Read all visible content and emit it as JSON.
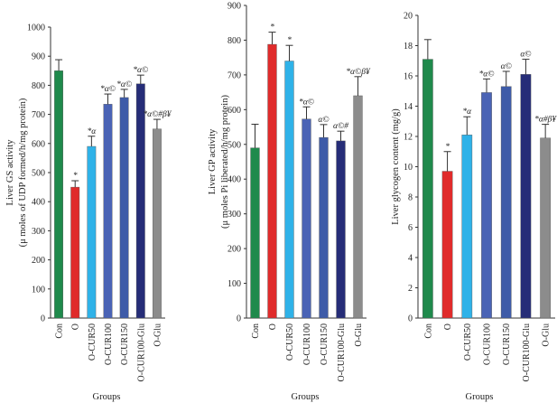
{
  "colors": [
    "#1f8a4c",
    "#e02b2b",
    "#2fb2e8",
    "#4a63b5",
    "#3e5ba8",
    "#262d78",
    "#8c8c8c"
  ],
  "chart_data": [
    {
      "type": "bar",
      "id": "gs",
      "categories": [
        "Con",
        "O",
        "O-CUR50",
        "O-CUR100",
        "O-CUR150",
        "O-CUR100-Glu",
        "O-Glu"
      ],
      "values": [
        850,
        450,
        590,
        735,
        758,
        805,
        650
      ],
      "errors": [
        38,
        22,
        35,
        35,
        28,
        30,
        33
      ],
      "annotations": [
        "",
        "*",
        "*α",
        "*α©",
        "*α©",
        "*α©",
        "*α©#β¥"
      ],
      "ylabel_lines": [
        "Liver GS activity",
        "(μ moles of UDP formed/h/mg protein)"
      ],
      "xlabel": "Groups",
      "ylim": [
        0,
        1000
      ],
      "yticks": [
        "0",
        "100",
        "200",
        "300",
        "400",
        "500",
        "600",
        "700",
        "800",
        "900",
        "1000"
      ]
    },
    {
      "type": "bar",
      "id": "gp",
      "categories": [
        "Con",
        "O",
        "O-CUR50",
        "O-CUR100",
        "O-CUR150",
        "O-CUR100-Glu",
        "O-Glu"
      ],
      "values": [
        490,
        788,
        740,
        573,
        520,
        510,
        640
      ],
      "errors": [
        68,
        35,
        45,
        35,
        37,
        28,
        55
      ],
      "annotations": [
        "",
        "*",
        "*",
        "*α©",
        "α©",
        "α©#",
        "*α©β¥"
      ],
      "ylabel_lines": [
        "Liver GP activity",
        "(μ moles Pi liberated/h/mg protein)"
      ],
      "xlabel": "Groups",
      "ylim": [
        0,
        900
      ],
      "yticks": [
        "0",
        "100",
        "200",
        "300",
        "400",
        "500",
        "600",
        "700",
        "800",
        "900"
      ]
    },
    {
      "type": "bar",
      "id": "glycogen",
      "categories": [
        "Con",
        "O",
        "O-CUR50",
        "O-CUR100",
        "O-CUR150",
        "O-CUR100-Glu",
        "O-Glu"
      ],
      "values": [
        17.1,
        9.7,
        12.1,
        14.9,
        15.3,
        16.1,
        11.9
      ],
      "errors": [
        1.3,
        1.3,
        1.2,
        0.9,
        1.0,
        1.0,
        0.9
      ],
      "annotations": [
        "",
        "*",
        "*α",
        "*α©",
        "α©",
        "α©",
        "*α#β¥"
      ],
      "ylabel_lines": [
        "Liver glycogen content (mg/g)"
      ],
      "xlabel": "Groups",
      "ylim": [
        0,
        20
      ],
      "yticks": [
        "0",
        "2",
        "4",
        "6",
        "8",
        "10",
        "12",
        "14",
        "16",
        "18",
        "20"
      ]
    }
  ]
}
